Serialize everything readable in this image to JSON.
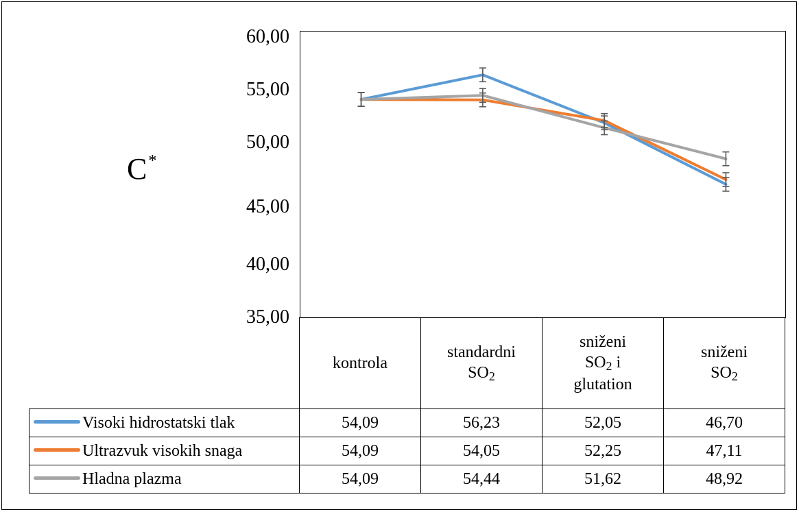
{
  "chart_data": {
    "type": "line",
    "ylabel": "C",
    "ylabel_sup": "*",
    "ylim": [
      35,
      60
    ],
    "yticks": [
      "60,00",
      "55,00",
      "50,00",
      "45,00",
      "40,00",
      "35,00"
    ],
    "categories": [
      [
        "kontrola"
      ],
      [
        "standardni",
        "SO₂"
      ],
      [
        "sniženi",
        "SO₂ i",
        "glutation"
      ],
      [
        "sniženi",
        "SO₂"
      ]
    ],
    "series": [
      {
        "name": "Visoki hidrostatski tlak",
        "color": "#5b9bd5",
        "values": [
          54.09,
          56.23,
          52.05,
          46.7
        ],
        "labels": [
          "54,09",
          "56,23",
          "52,05",
          "46,70"
        ]
      },
      {
        "name": "Ultrazvuk visokih snaga",
        "color": "#ed7d31",
        "values": [
          54.09,
          54.05,
          52.25,
          47.11
        ],
        "labels": [
          "54,09",
          "54,05",
          "52,25",
          "47,11"
        ]
      },
      {
        "name": "Hladna plazma",
        "color": "#a5a5a5",
        "values": [
          54.09,
          54.44,
          51.62,
          48.92
        ],
        "labels": [
          "54,09",
          "54,44",
          "51,62",
          "48,92"
        ]
      }
    ],
    "error_bars": {
      "series": "Hladna plazma",
      "error": 0.6
    }
  }
}
